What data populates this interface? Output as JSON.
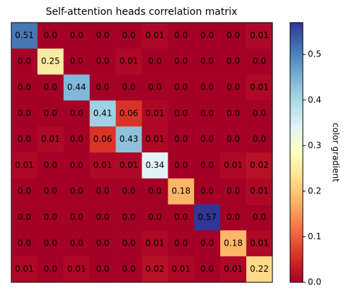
{
  "chart_data": {
    "type": "heatmap",
    "title": "Self-attention heads correlation matrix",
    "colormap": "RdYlBu",
    "clim": [
      0,
      0.57
    ],
    "colorbar_label": "color gradient",
    "colorbar_ticks": [
      {
        "value": 0,
        "label": "0.0"
      },
      0.1,
      0.2,
      0.3,
      0.4,
      0.5
    ],
    "values": [
      [
        0.51,
        0,
        0,
        0,
        0,
        0.01,
        0,
        0,
        0,
        0.01
      ],
      [
        0,
        0.25,
        0,
        0,
        0.01,
        0,
        0,
        0,
        0,
        0
      ],
      [
        0,
        0,
        0.44,
        0,
        0,
        0,
        0,
        0,
        0,
        0.01
      ],
      [
        0,
        0,
        0,
        0.41,
        0.06,
        0.01,
        0,
        0,
        0,
        0
      ],
      [
        0,
        0.01,
        0,
        0.06,
        0.43,
        0.01,
        0,
        0,
        0,
        0
      ],
      [
        0.01,
        0,
        0,
        0.01,
        0.01,
        0.34,
        0,
        0,
        0.01,
        0.02
      ],
      [
        0,
        0,
        0,
        0,
        0,
        0,
        0.18,
        0,
        0,
        0.01
      ],
      [
        0,
        0,
        0,
        0,
        0,
        0,
        0,
        0.57,
        0,
        0
      ],
      [
        0,
        0,
        0,
        0,
        0,
        0.01,
        0,
        0,
        0.18,
        0.01
      ],
      [
        0.01,
        0,
        0.01,
        0,
        0,
        0.02,
        0.01,
        0,
        0.01,
        0.22
      ]
    ],
    "value_labels": [
      [
        "0.51",
        "0.0",
        "0.0",
        "0.0",
        "0.0",
        "0.01",
        "0.0",
        "0.0",
        "0.0",
        "0.01"
      ],
      [
        "0.0",
        "0.25",
        "0.0",
        "0.0",
        "0.01",
        "0.0",
        "0.0",
        "0.0",
        "0.0",
        "0.0"
      ],
      [
        "0.0",
        "0.0",
        "0.44",
        "0.0",
        "0.0",
        "0.0",
        "0.0",
        "0.0",
        "0.0",
        "0.01"
      ],
      [
        "0.0",
        "0.0",
        "0.0",
        "0.41",
        "0.06",
        "0.01",
        "0.0",
        "0.0",
        "0.0",
        "0.0"
      ],
      [
        "0.0",
        "0.01",
        "0.0",
        "0.06",
        "0.43",
        "0.01",
        "0.0",
        "0.0",
        "0.0",
        "0.0"
      ],
      [
        "0.01",
        "0.0",
        "0.0",
        "0.01",
        "0.01",
        "0.34",
        "0.0",
        "0.0",
        "0.01",
        "0.02"
      ],
      [
        "0.0",
        "0.0",
        "0.0",
        "0.0",
        "0.0",
        "0.0",
        "0.18",
        "0.0",
        "0.0",
        "0.01"
      ],
      [
        "0.0",
        "0.0",
        "0.0",
        "0.0",
        "0.0",
        "0.0",
        "0.0",
        "0.57",
        "0.0",
        "0.0"
      ],
      [
        "0.0",
        "0.0",
        "0.0",
        "0.0",
        "0.0",
        "0.01",
        "0.0",
        "0.0",
        "0.18",
        "0.01"
      ],
      [
        "0.01",
        "0.0",
        "0.01",
        "0.0",
        "0.0",
        "0.02",
        "0.01",
        "0.0",
        "0.01",
        "0.22"
      ]
    ]
  }
}
